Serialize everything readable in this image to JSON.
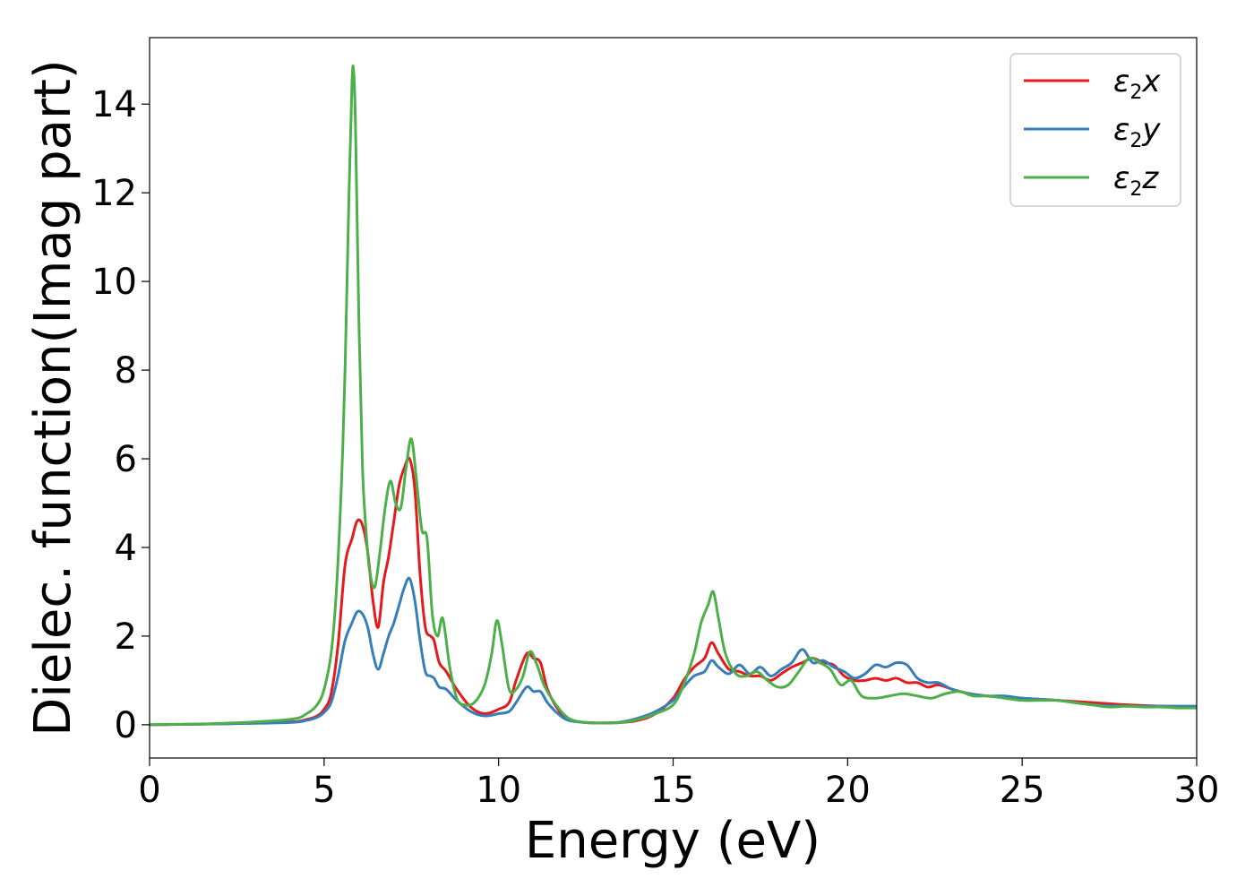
{
  "chart_data": {
    "type": "line",
    "title": "",
    "xlabel": "Energy (eV)",
    "ylabel": "Dielec. function(Imag part)",
    "xlim": [
      0,
      30
    ],
    "ylim": [
      -0.75,
      15.5
    ],
    "xticks": [
      "0",
      "5",
      "10",
      "15",
      "20",
      "25",
      "30"
    ],
    "yticks": [
      "0",
      "2",
      "4",
      "6",
      "8",
      "10",
      "12",
      "14"
    ],
    "grid": false,
    "legend_position": "top-right",
    "series": [
      {
        "name": "ε2x",
        "legend": {
          "base": "ε",
          "sub": "2",
          "suffix": "x"
        },
        "color": "#e41a1c",
        "x": [
          0,
          2,
          4,
          4.5,
          4.8,
          5.0,
          5.2,
          5.4,
          5.6,
          5.8,
          5.95,
          6.1,
          6.25,
          6.4,
          6.55,
          6.7,
          6.85,
          7.0,
          7.15,
          7.3,
          7.45,
          7.6,
          7.75,
          7.9,
          8.05,
          8.15,
          8.3,
          8.5,
          8.8,
          9.2,
          9.6,
          10.0,
          10.3,
          10.5,
          10.8,
          11.0,
          11.2,
          11.4,
          11.7,
          12.0,
          12.5,
          13.0,
          13.5,
          14.0,
          14.5,
          15.0,
          15.3,
          15.6,
          15.9,
          16.1,
          16.3,
          16.6,
          16.9,
          17.2,
          17.5,
          17.8,
          18.1,
          18.4,
          18.7,
          19.0,
          19.3,
          19.6,
          19.9,
          20.2,
          20.5,
          20.8,
          21.1,
          21.4,
          21.7,
          22.0,
          22.3,
          22.6,
          23.0,
          23.5,
          24.0,
          24.5,
          25.0,
          26.0,
          27.0,
          28.0,
          29.0,
          30.0
        ],
        "values": [
          0.0,
          0.02,
          0.06,
          0.12,
          0.2,
          0.35,
          0.7,
          1.8,
          3.6,
          4.2,
          4.6,
          4.5,
          3.9,
          2.8,
          2.2,
          3.2,
          3.8,
          4.6,
          5.4,
          5.8,
          6.0,
          5.3,
          3.4,
          2.2,
          2.0,
          1.9,
          1.4,
          1.2,
          0.8,
          0.4,
          0.25,
          0.35,
          0.5,
          1.0,
          1.6,
          1.5,
          1.4,
          0.8,
          0.35,
          0.12,
          0.05,
          0.04,
          0.05,
          0.1,
          0.25,
          0.6,
          1.0,
          1.3,
          1.5,
          1.85,
          1.6,
          1.25,
          1.2,
          1.1,
          1.1,
          1.0,
          1.15,
          1.3,
          1.4,
          1.5,
          1.4,
          1.35,
          1.1,
          1.0,
          1.0,
          1.05,
          1.0,
          1.05,
          0.95,
          0.95,
          0.85,
          0.9,
          0.8,
          0.7,
          0.65,
          0.62,
          0.6,
          0.55,
          0.5,
          0.45,
          0.42,
          0.4
        ]
      },
      {
        "name": "ε2y",
        "legend": {
          "base": "ε",
          "sub": "2",
          "suffix": "y"
        },
        "color": "#377eb8",
        "x": [
          0,
          2,
          4,
          4.5,
          4.8,
          5.0,
          5.2,
          5.4,
          5.6,
          5.8,
          5.95,
          6.1,
          6.25,
          6.4,
          6.55,
          6.7,
          6.85,
          7.0,
          7.15,
          7.3,
          7.45,
          7.6,
          7.75,
          7.9,
          8.05,
          8.15,
          8.3,
          8.5,
          8.8,
          9.2,
          9.6,
          10.0,
          10.3,
          10.5,
          10.8,
          11.0,
          11.2,
          11.4,
          11.7,
          12.0,
          12.5,
          13.0,
          13.5,
          14.0,
          14.5,
          15.0,
          15.3,
          15.6,
          15.9,
          16.1,
          16.3,
          16.6,
          16.9,
          17.2,
          17.5,
          17.8,
          18.1,
          18.4,
          18.7,
          19.0,
          19.3,
          19.6,
          19.9,
          20.2,
          20.5,
          20.8,
          21.1,
          21.4,
          21.7,
          22.0,
          22.3,
          22.6,
          23.0,
          23.5,
          24.0,
          24.5,
          25.0,
          26.0,
          27.0,
          28.0,
          29.0,
          30.0
        ],
        "values": [
          0.0,
          0.02,
          0.05,
          0.1,
          0.17,
          0.28,
          0.5,
          1.1,
          1.9,
          2.3,
          2.55,
          2.5,
          2.2,
          1.6,
          1.25,
          1.6,
          2.0,
          2.3,
          2.7,
          3.1,
          3.3,
          2.8,
          1.9,
          1.2,
          1.1,
          1.05,
          0.85,
          0.8,
          0.55,
          0.3,
          0.2,
          0.25,
          0.3,
          0.5,
          0.85,
          0.75,
          0.75,
          0.5,
          0.25,
          0.1,
          0.05,
          0.04,
          0.06,
          0.15,
          0.3,
          0.55,
          0.85,
          1.1,
          1.2,
          1.45,
          1.3,
          1.15,
          1.35,
          1.15,
          1.3,
          1.1,
          1.25,
          1.4,
          1.7,
          1.4,
          1.45,
          1.3,
          1.2,
          1.05,
          1.15,
          1.35,
          1.3,
          1.4,
          1.35,
          1.05,
          0.95,
          0.95,
          0.8,
          0.7,
          0.65,
          0.65,
          0.6,
          0.55,
          0.45,
          0.42,
          0.42,
          0.42
        ]
      },
      {
        "name": "ε2z",
        "legend": {
          "base": "ε",
          "sub": "2",
          "suffix": "z"
        },
        "color": "#4daf4a",
        "x": [
          0,
          2,
          4,
          4.5,
          4.8,
          5.0,
          5.2,
          5.35,
          5.5,
          5.6,
          5.7,
          5.8,
          5.85,
          5.9,
          6.0,
          6.1,
          6.2,
          6.3,
          6.45,
          6.6,
          6.75,
          6.9,
          7.05,
          7.2,
          7.35,
          7.5,
          7.65,
          7.8,
          7.95,
          8.1,
          8.25,
          8.4,
          8.6,
          8.8,
          9.0,
          9.3,
          9.6,
          9.8,
          9.95,
          10.1,
          10.3,
          10.5,
          10.7,
          10.9,
          11.1,
          11.3,
          11.6,
          12.0,
          12.5,
          13.0,
          13.5,
          14.0,
          14.5,
          15.0,
          15.3,
          15.6,
          15.8,
          16.0,
          16.15,
          16.3,
          16.5,
          16.8,
          17.1,
          17.4,
          17.7,
          18.0,
          18.3,
          18.6,
          18.9,
          19.2,
          19.5,
          19.8,
          20.1,
          20.4,
          20.8,
          21.2,
          21.6,
          22.0,
          22.4,
          22.8,
          23.2,
          23.6,
          24.0,
          24.5,
          25.0,
          25.5,
          26.0,
          26.5,
          27.0,
          27.5,
          28.0,
          28.5,
          29.0,
          29.5,
          30.0
        ],
        "values": [
          0.0,
          0.03,
          0.12,
          0.25,
          0.45,
          0.8,
          1.6,
          3.0,
          5.5,
          8.0,
          11.5,
          14.5,
          14.7,
          13.5,
          9.0,
          5.8,
          4.4,
          3.5,
          3.1,
          3.9,
          4.9,
          5.5,
          5.0,
          4.9,
          5.8,
          6.45,
          5.5,
          4.4,
          4.2,
          2.5,
          2.0,
          2.4,
          1.3,
          0.6,
          0.45,
          0.5,
          0.9,
          1.6,
          2.35,
          1.8,
          0.8,
          0.8,
          1.1,
          1.65,
          1.35,
          0.9,
          0.5,
          0.15,
          0.05,
          0.04,
          0.05,
          0.12,
          0.25,
          0.45,
          0.9,
          1.6,
          2.3,
          2.7,
          3.0,
          2.4,
          1.6,
          1.15,
          1.1,
          1.2,
          1.0,
          0.85,
          0.9,
          1.2,
          1.5,
          1.4,
          1.25,
          0.9,
          1.0,
          0.65,
          0.6,
          0.65,
          0.7,
          0.65,
          0.6,
          0.7,
          0.75,
          0.65,
          0.65,
          0.6,
          0.55,
          0.55,
          0.55,
          0.5,
          0.45,
          0.4,
          0.42,
          0.4,
          0.4,
          0.38,
          0.38
        ]
      }
    ]
  }
}
